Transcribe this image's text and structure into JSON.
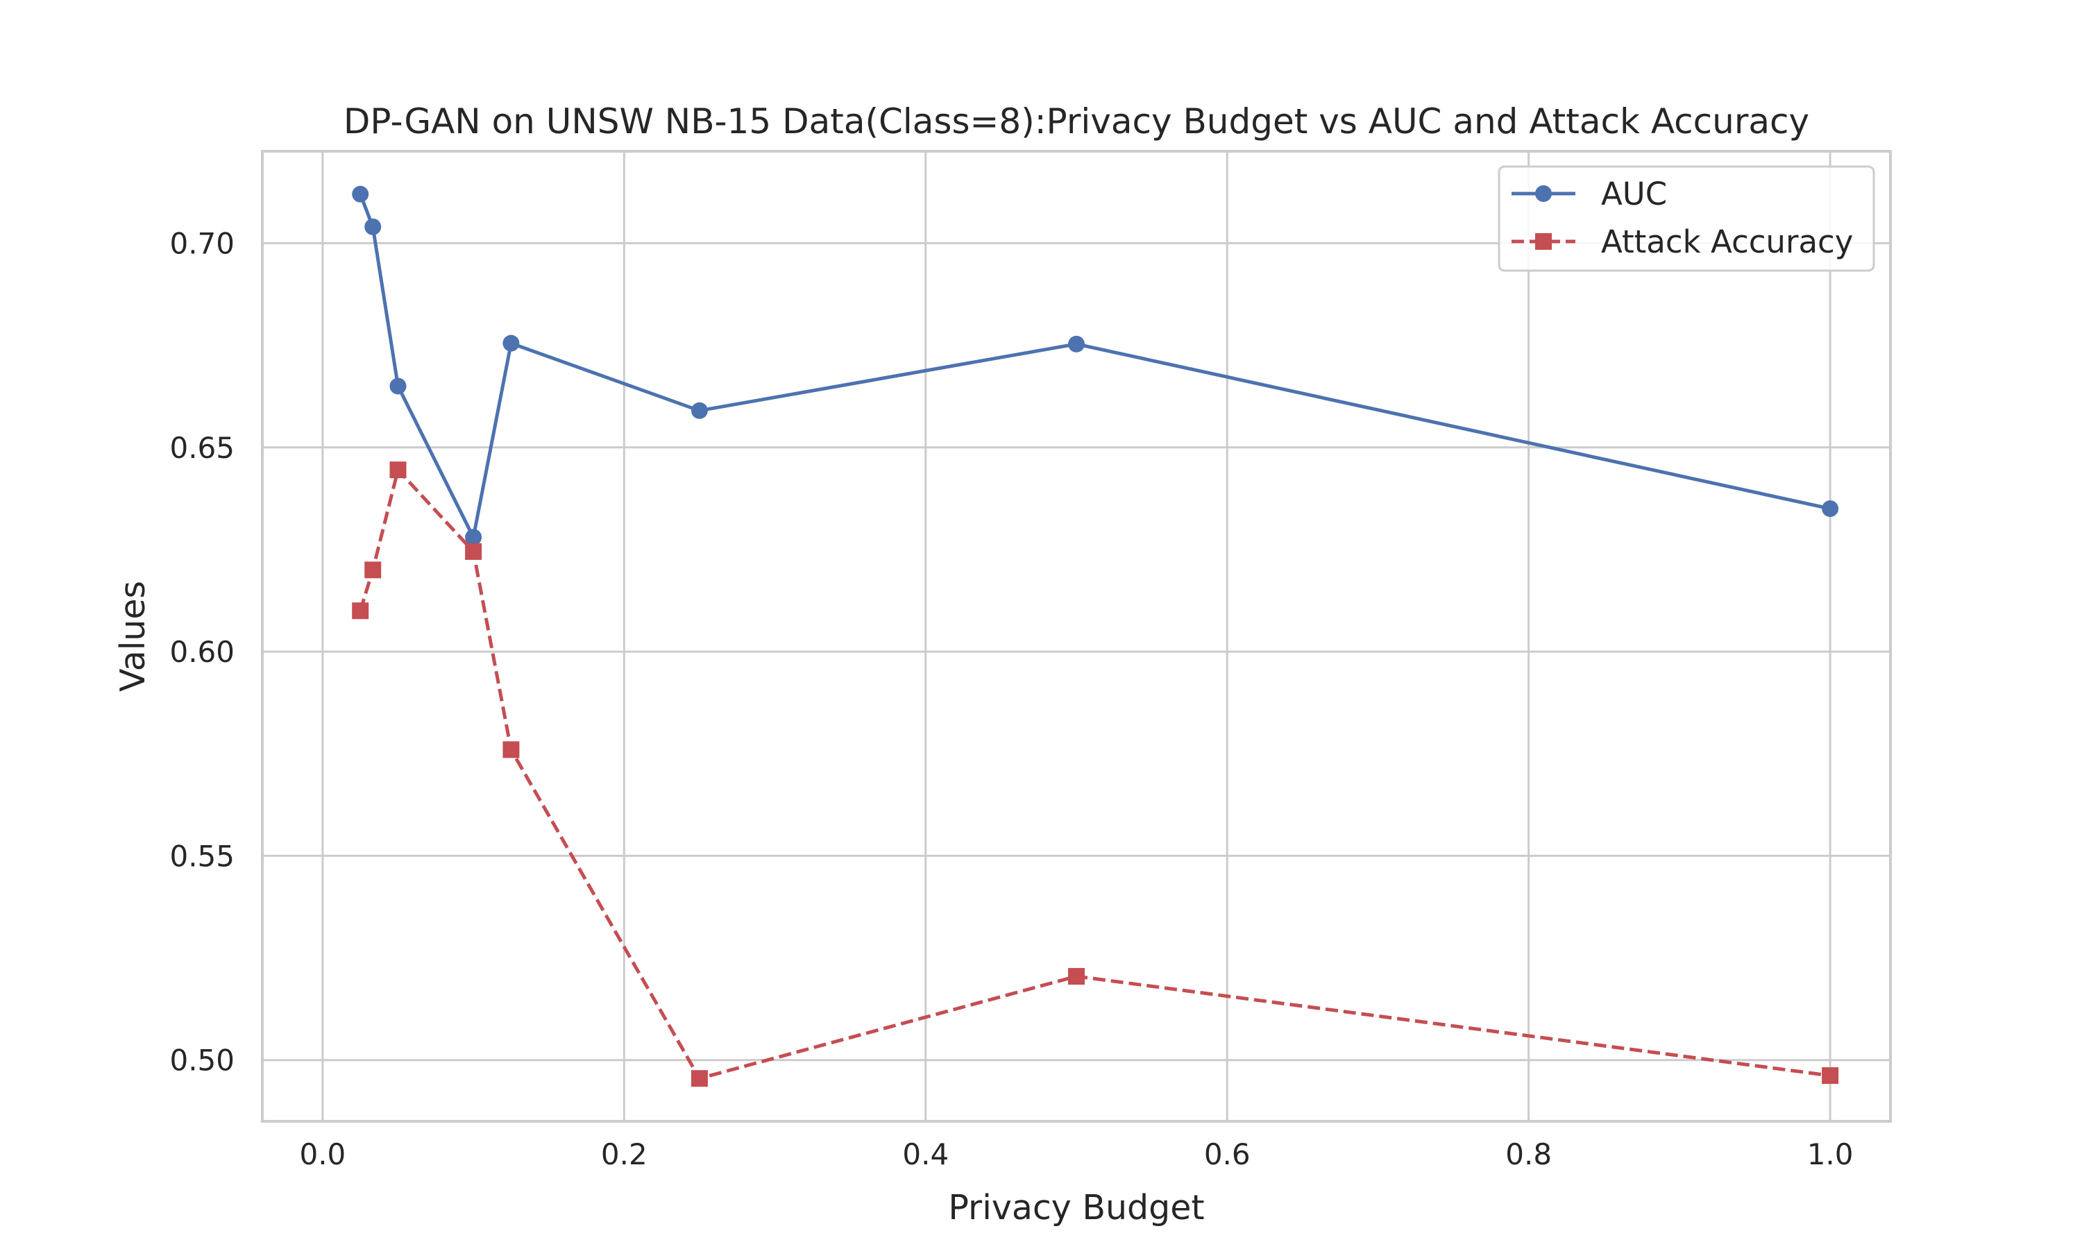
{
  "chart_data": {
    "type": "line",
    "title": "DP-GAN on UNSW NB-15 Data(Class=8):Privacy Budget vs AUC and Attack Accuracy",
    "xlabel": "Privacy Budget",
    "ylabel": "Values",
    "xlim": [
      -0.04,
      1.04
    ],
    "ylim": [
      0.485,
      0.7225
    ],
    "xticks": [
      0.0,
      0.2,
      0.4,
      0.6,
      0.8,
      1.0
    ],
    "xtick_labels": [
      "0.0",
      "0.2",
      "0.4",
      "0.6",
      "0.8",
      "1.0"
    ],
    "yticks": [
      0.5,
      0.55,
      0.6,
      0.65,
      0.7
    ],
    "ytick_labels": [
      "0.50",
      "0.55",
      "0.60",
      "0.65",
      "0.70"
    ],
    "grid": true,
    "legend_position": "top-right",
    "series": [
      {
        "name": "AUC",
        "color": "#4c72b0",
        "line_style": "solid",
        "marker": "circle",
        "x": [
          0.025,
          0.0333,
          0.05,
          0.1,
          0.125,
          0.25,
          0.5,
          1.0
        ],
        "y": [
          0.712,
          0.704,
          0.665,
          0.628,
          0.6755,
          0.659,
          0.6753,
          0.635
        ]
      },
      {
        "name": "Attack Accuracy",
        "color": "#c44e52",
        "line_style": "dashed",
        "marker": "square",
        "x": [
          0.025,
          0.0333,
          0.05,
          0.1,
          0.125,
          0.25,
          0.5,
          1.0
        ],
        "y": [
          0.61,
          0.62,
          0.6445,
          0.6245,
          0.576,
          0.4955,
          0.5205,
          0.4962
        ]
      }
    ]
  }
}
